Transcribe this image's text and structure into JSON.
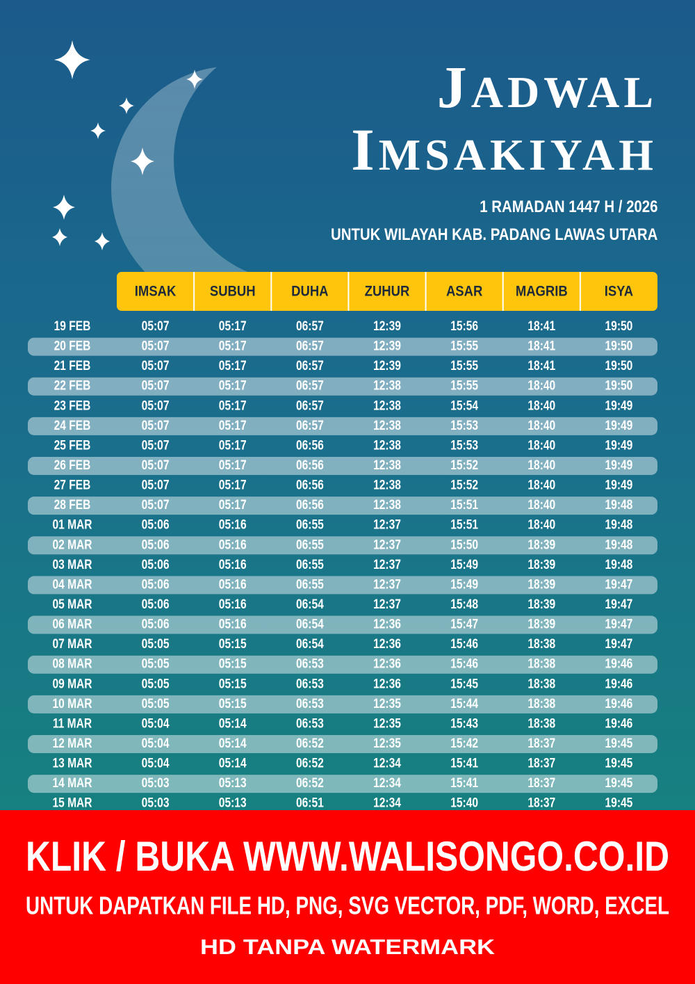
{
  "header": {
    "title": [
      "JADWAL",
      "IMSAKIYAH"
    ],
    "subtitle": [
      "1 RAMADAN 1447 H / 2026",
      "UNTUK WILAYAH KAB. PADANG LAWAS UTARA"
    ]
  },
  "table": {
    "columns": [
      "IMSAK",
      "SUBUH",
      "DUHA",
      "ZUHUR",
      "ASAR",
      "MAGRIB",
      "ISYA"
    ],
    "rows": [
      [
        "19 FEB",
        "05:07",
        "05:17",
        "06:57",
        "12:39",
        "15:56",
        "18:41",
        "19:50"
      ],
      [
        "20 FEB",
        "05:07",
        "05:17",
        "06:57",
        "12:39",
        "15:55",
        "18:41",
        "19:50"
      ],
      [
        "21 FEB",
        "05:07",
        "05:17",
        "06:57",
        "12:39",
        "15:55",
        "18:41",
        "19:50"
      ],
      [
        "22 FEB",
        "05:07",
        "05:17",
        "06:57",
        "12:38",
        "15:55",
        "18:40",
        "19:50"
      ],
      [
        "23 FEB",
        "05:07",
        "05:17",
        "06:57",
        "12:38",
        "15:54",
        "18:40",
        "19:49"
      ],
      [
        "24 FEB",
        "05:07",
        "05:17",
        "06:57",
        "12:38",
        "15:53",
        "18:40",
        "19:49"
      ],
      [
        "25 FEB",
        "05:07",
        "05:17",
        "06:56",
        "12:38",
        "15:53",
        "18:40",
        "19:49"
      ],
      [
        "26 FEB",
        "05:07",
        "05:17",
        "06:56",
        "12:38",
        "15:52",
        "18:40",
        "19:49"
      ],
      [
        "27 FEB",
        "05:07",
        "05:17",
        "06:56",
        "12:38",
        "15:52",
        "18:40",
        "19:49"
      ],
      [
        "28 FEB",
        "05:07",
        "05:17",
        "06:56",
        "12:38",
        "15:51",
        "18:40",
        "19:48"
      ],
      [
        "01 MAR",
        "05:06",
        "05:16",
        "06:55",
        "12:37",
        "15:51",
        "18:40",
        "19:48"
      ],
      [
        "02 MAR",
        "05:06",
        "05:16",
        "06:55",
        "12:37",
        "15:50",
        "18:39",
        "19:48"
      ],
      [
        "03 MAR",
        "05:06",
        "05:16",
        "06:55",
        "12:37",
        "15:49",
        "18:39",
        "19:48"
      ],
      [
        "04 MAR",
        "05:06",
        "05:16",
        "06:55",
        "12:37",
        "15:49",
        "18:39",
        "19:47"
      ],
      [
        "05 MAR",
        "05:06",
        "05:16",
        "06:54",
        "12:37",
        "15:48",
        "18:39",
        "19:47"
      ],
      [
        "06 MAR",
        "05:06",
        "05:16",
        "06:54",
        "12:36",
        "15:47",
        "18:39",
        "19:47"
      ],
      [
        "07 MAR",
        "05:05",
        "05:15",
        "06:54",
        "12:36",
        "15:46",
        "18:38",
        "19:47"
      ],
      [
        "08 MAR",
        "05:05",
        "05:15",
        "06:53",
        "12:36",
        "15:46",
        "18:38",
        "19:46"
      ],
      [
        "09 MAR",
        "05:05",
        "05:15",
        "06:53",
        "12:36",
        "15:45",
        "18:38",
        "19:46"
      ],
      [
        "10 MAR",
        "05:05",
        "05:15",
        "06:53",
        "12:35",
        "15:44",
        "18:38",
        "19:46"
      ],
      [
        "11 MAR",
        "05:04",
        "05:14",
        "06:53",
        "12:35",
        "15:43",
        "18:38",
        "19:46"
      ],
      [
        "12 MAR",
        "05:04",
        "05:14",
        "06:52",
        "12:35",
        "15:42",
        "18:37",
        "19:45"
      ],
      [
        "13 MAR",
        "05:04",
        "05:14",
        "06:52",
        "12:34",
        "15:41",
        "18:37",
        "19:45"
      ],
      [
        "14 MAR",
        "05:03",
        "05:13",
        "06:52",
        "12:34",
        "15:41",
        "18:37",
        "19:45"
      ],
      [
        "15 MAR",
        "05:03",
        "05:13",
        "06:51",
        "12:34",
        "15:40",
        "18:37",
        "19:45"
      ]
    ]
  },
  "banner": [
    "KLIK / BUKA WWW.WALISONGO.CO.ID",
    "UNTUK DAPATKAN FILE HD, PNG, SVG VECTOR, PDF, WORD, EXCEL",
    "HD TANPA WATERMARK"
  ]
}
